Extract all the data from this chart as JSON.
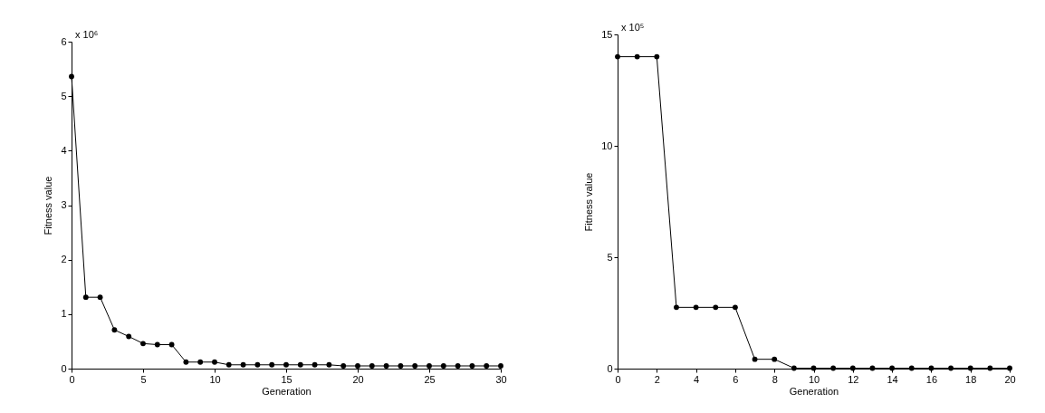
{
  "chart_data": [
    {
      "type": "line",
      "xlabel": "Generation",
      "ylabel": "Fitness value",
      "annotations": [
        "x 10⁶"
      ],
      "x": [
        0,
        1,
        2,
        3,
        4,
        5,
        6,
        7,
        8,
        9,
        10,
        11,
        12,
        13,
        14,
        15,
        16,
        17,
        18,
        19,
        20,
        21,
        22,
        23,
        24,
        25,
        26,
        27,
        28,
        29,
        30
      ],
      "xlim": [
        0,
        30
      ],
      "xticks": [
        0,
        5,
        10,
        15,
        20,
        25,
        30
      ],
      "ylim": [
        0,
        6
      ],
      "yticks": [
        0,
        1,
        2,
        3,
        4,
        5,
        6
      ],
      "marker": "circle",
      "line_style": "solid",
      "series": [
        {
          "color": "#000000",
          "values": [
            5.36,
            1.31,
            1.31,
            0.71,
            0.59,
            0.46,
            0.44,
            0.44,
            0.12,
            0.12,
            0.12,
            0.07,
            0.07,
            0.07,
            0.07,
            0.07,
            0.07,
            0.07,
            0.07,
            0.05,
            0.05,
            0.05,
            0.05,
            0.05,
            0.05,
            0.05,
            0.05,
            0.05,
            0.05,
            0.05,
            0.05
          ]
        }
      ]
    },
    {
      "type": "line",
      "xlabel": "Generation",
      "ylabel": "Fitness value",
      "annotations": [
        "x 10⁵"
      ],
      "x": [
        0,
        1,
        2,
        3,
        4,
        5,
        6,
        7,
        8,
        9,
        10,
        11,
        12,
        13,
        14,
        15,
        16,
        17,
        18,
        19,
        20
      ],
      "xlim": [
        0,
        20
      ],
      "xticks": [
        0,
        2,
        4,
        6,
        8,
        10,
        12,
        14,
        16,
        18,
        20
      ],
      "ylim": [
        0,
        15
      ],
      "yticks": [
        0,
        5,
        10,
        15
      ],
      "marker": "circle",
      "line_style": "solid",
      "series": [
        {
          "color": "#000000",
          "values": [
            14.0,
            14.0,
            14.0,
            2.75,
            2.75,
            2.75,
            2.75,
            0.42,
            0.42,
            0.02,
            0.02,
            0.02,
            0.02,
            0.02,
            0.02,
            0.02,
            0.02,
            0.02,
            0.02,
            0.02,
            0.02
          ]
        }
      ]
    }
  ]
}
